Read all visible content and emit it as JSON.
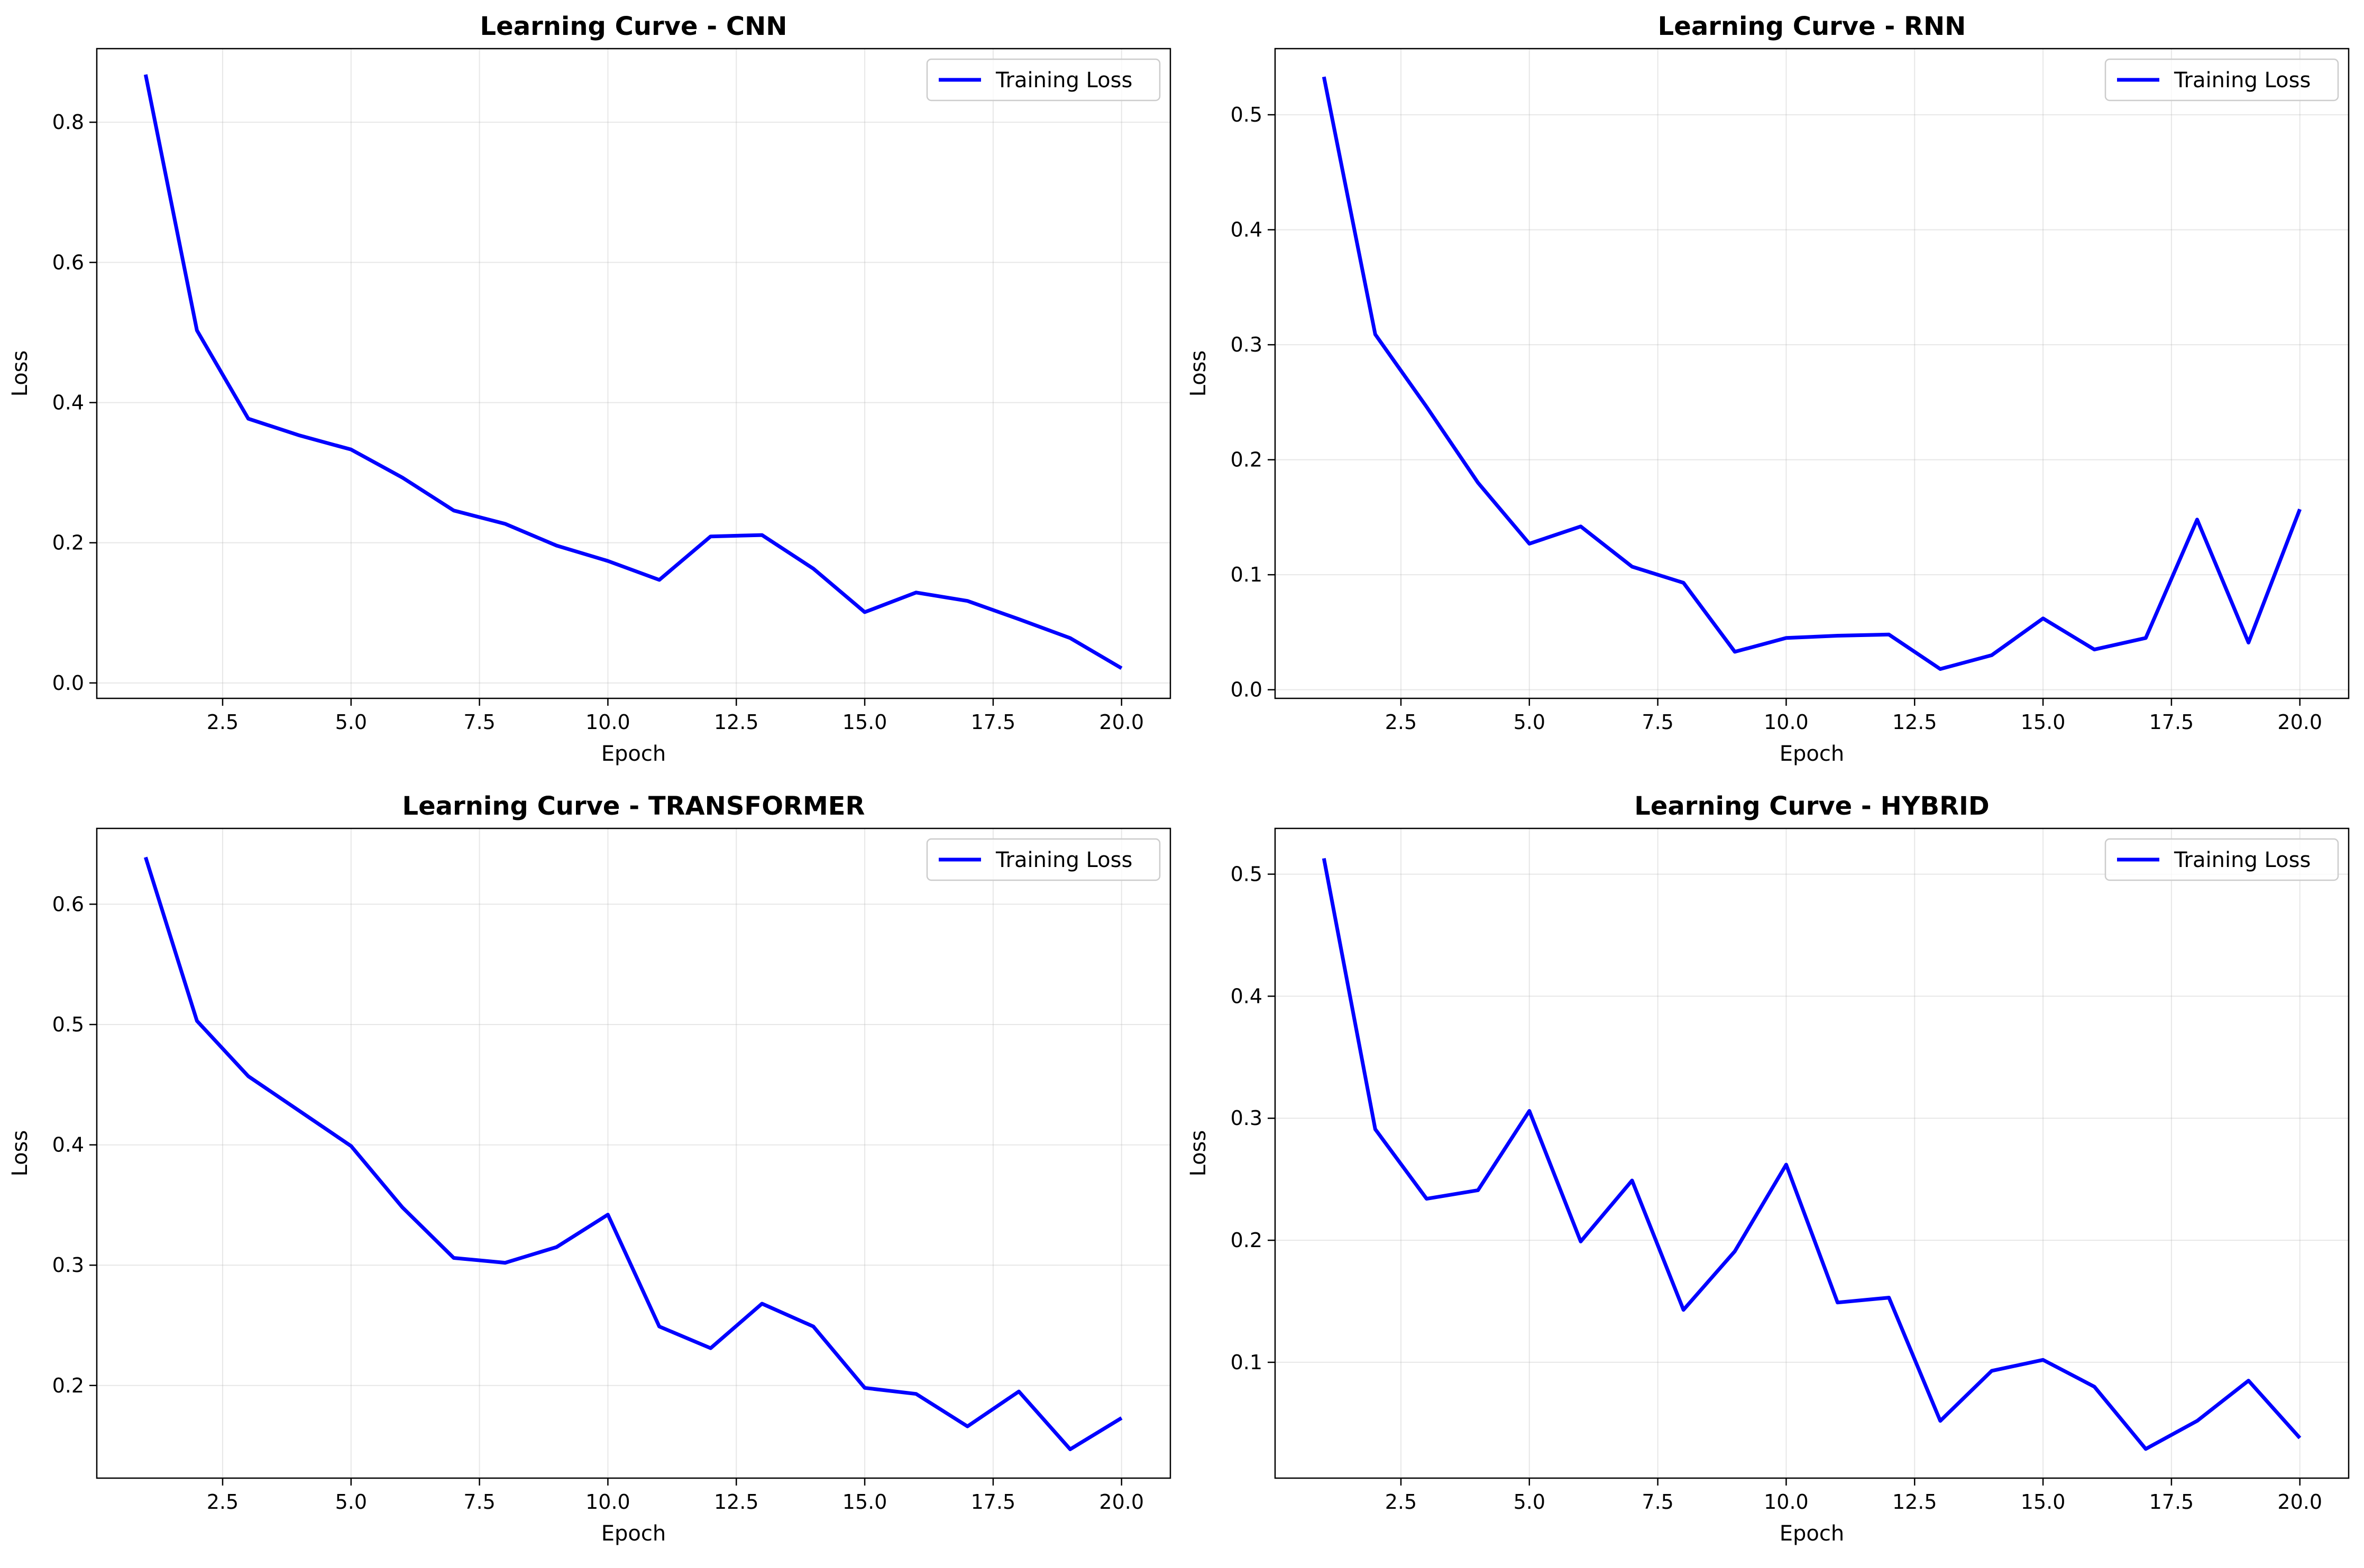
{
  "chart_data": [
    {
      "type": "line",
      "title": "Learning Curve - CNN",
      "xlabel": "Epoch",
      "ylabel": "Loss",
      "xlim": [
        0.05,
        20.95
      ],
      "ylim": [
        -0.022,
        0.905
      ],
      "xticks": [
        2.5,
        5.0,
        7.5,
        10.0,
        12.5,
        15.0,
        17.5,
        20.0
      ],
      "xtick_labels": [
        "2.5",
        "5.0",
        "7.5",
        "10.0",
        "12.5",
        "15.0",
        "17.5",
        "20.0"
      ],
      "yticks": [
        0.0,
        0.2,
        0.4,
        0.6,
        0.8
      ],
      "ytick_labels": [
        "0.0",
        "0.2",
        "0.4",
        "0.6",
        "0.8"
      ],
      "grid": true,
      "legend": "upper right",
      "color": "#0000ff",
      "series": [
        {
          "name": "Training Loss",
          "x": [
            1,
            2,
            3,
            4,
            5,
            6,
            7,
            8,
            9,
            10,
            11,
            12,
            13,
            14,
            15,
            16,
            17,
            18,
            19,
            20
          ],
          "y": [
            0.868,
            0.503,
            0.377,
            0.353,
            0.333,
            0.293,
            0.246,
            0.227,
            0.196,
            0.174,
            0.147,
            0.209,
            0.211,
            0.163,
            0.101,
            0.129,
            0.117,
            0.091,
            0.064,
            0.021
          ]
        }
      ]
    },
    {
      "type": "line",
      "title": "Learning Curve - RNN",
      "xlabel": "Epoch",
      "ylabel": "Loss",
      "xlim": [
        0.05,
        20.95
      ],
      "ylim": [
        -0.0075,
        0.5575
      ],
      "xticks": [
        2.5,
        5.0,
        7.5,
        10.0,
        12.5,
        15.0,
        17.5,
        20.0
      ],
      "xtick_labels": [
        "2.5",
        "5.0",
        "7.5",
        "10.0",
        "12.5",
        "15.0",
        "17.5",
        "20.0"
      ],
      "yticks": [
        0.0,
        0.1,
        0.2,
        0.3,
        0.4,
        0.5
      ],
      "ytick_labels": [
        "0.0",
        "0.1",
        "0.2",
        "0.3",
        "0.4",
        "0.5"
      ],
      "grid": true,
      "legend": "upper right",
      "color": "#0000ff",
      "series": [
        {
          "name": "Training Loss",
          "x": [
            1,
            2,
            3,
            4,
            5,
            6,
            7,
            8,
            9,
            10,
            11,
            12,
            13,
            14,
            15,
            16,
            17,
            18,
            19,
            20
          ],
          "y": [
            0.533,
            0.309,
            0.246,
            0.18,
            0.127,
            0.142,
            0.107,
            0.093,
            0.033,
            0.045,
            0.047,
            0.048,
            0.018,
            0.03,
            0.062,
            0.035,
            0.045,
            0.148,
            0.041,
            0.157
          ]
        }
      ]
    },
    {
      "type": "line",
      "title": "Learning Curve - TRANSFORMER",
      "xlabel": "Epoch",
      "ylabel": "Loss",
      "xlim": [
        0.05,
        20.95
      ],
      "ylim": [
        0.123,
        0.663
      ],
      "xticks": [
        2.5,
        5.0,
        7.5,
        10.0,
        12.5,
        15.0,
        17.5,
        20.0
      ],
      "xtick_labels": [
        "2.5",
        "5.0",
        "7.5",
        "10.0",
        "12.5",
        "15.0",
        "17.5",
        "20.0"
      ],
      "yticks": [
        0.2,
        0.3,
        0.4,
        0.5,
        0.6
      ],
      "ytick_labels": [
        "0.2",
        "0.3",
        "0.4",
        "0.5",
        "0.6"
      ],
      "grid": true,
      "legend": "upper right",
      "color": "#0000ff",
      "series": [
        {
          "name": "Training Loss",
          "x": [
            1,
            2,
            3,
            4,
            5,
            6,
            7,
            8,
            9,
            10,
            11,
            12,
            13,
            14,
            15,
            16,
            17,
            18,
            19,
            20
          ],
          "y": [
            0.639,
            0.503,
            0.457,
            0.428,
            0.399,
            0.348,
            0.306,
            0.302,
            0.315,
            0.342,
            0.249,
            0.231,
            0.268,
            0.249,
            0.198,
            0.193,
            0.166,
            0.195,
            0.147,
            0.173
          ]
        }
      ]
    },
    {
      "type": "line",
      "title": "Learning Curve - HYBRID",
      "xlabel": "Epoch",
      "ylabel": "Loss",
      "xlim": [
        0.05,
        20.95
      ],
      "ylim": [
        0.0051,
        0.5375
      ],
      "xticks": [
        2.5,
        5.0,
        7.5,
        10.0,
        12.5,
        15.0,
        17.5,
        20.0
      ],
      "xtick_labels": [
        "2.5",
        "5.0",
        "7.5",
        "10.0",
        "12.5",
        "15.0",
        "17.5",
        "20.0"
      ],
      "yticks": [
        0.1,
        0.2,
        0.3,
        0.4,
        0.5
      ],
      "ytick_labels": [
        "0.1",
        "0.2",
        "0.3",
        "0.4",
        "0.5"
      ],
      "grid": true,
      "legend": "upper right",
      "color": "#0000ff",
      "series": [
        {
          "name": "Training Loss",
          "x": [
            1,
            2,
            3,
            4,
            5,
            6,
            7,
            8,
            9,
            10,
            11,
            12,
            13,
            14,
            15,
            16,
            17,
            18,
            19,
            20
          ],
          "y": [
            0.513,
            0.291,
            0.234,
            0.241,
            0.306,
            0.199,
            0.249,
            0.143,
            0.191,
            0.262,
            0.149,
            0.153,
            0.052,
            0.093,
            0.102,
            0.08,
            0.029,
            0.052,
            0.085,
            0.038
          ]
        }
      ]
    }
  ]
}
